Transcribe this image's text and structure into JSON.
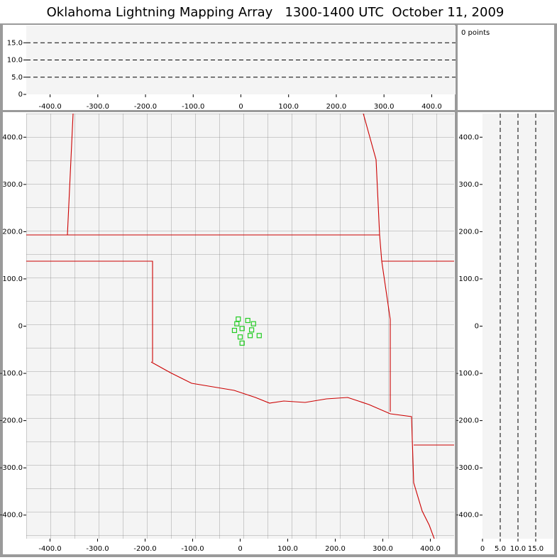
{
  "title": "Oklahoma Lightning Mapping Array   1300-1400 UTC  October 11, 2009",
  "point_count": "0 points",
  "chart_data": [
    {
      "type": "scatter",
      "xlim": [
        -450,
        450
      ],
      "xticks": [
        {
          "value": -400,
          "label": "-400.0"
        },
        {
          "value": -300,
          "label": "-300.0"
        },
        {
          "value": -200,
          "label": "-200.0"
        },
        {
          "value": -100,
          "label": "-100.0"
        },
        0,
        {
          "value": 100,
          "label": "100.0"
        },
        {
          "value": 200,
          "label": "200.0"
        },
        {
          "value": 300,
          "label": "300.0"
        },
        {
          "value": 400,
          "label": "400.0"
        }
      ],
      "ylim": [
        0,
        20
      ],
      "yticks": [
        0,
        {
          "value": 5,
          "label": "5.0"
        },
        {
          "value": 10,
          "label": "10.0"
        },
        {
          "value": 15,
          "label": "15.0"
        }
      ],
      "grid": "dashed"
    },
    {
      "type": "map",
      "xlim": [
        -450,
        450
      ],
      "xticks": [
        {
          "value": -400,
          "label": "-400.0"
        },
        {
          "value": -300,
          "label": "-300.0"
        },
        {
          "value": -200,
          "label": "-200.0"
        },
        {
          "value": -100,
          "label": "-100.0"
        },
        0,
        {
          "value": 100,
          "label": "100.0"
        },
        {
          "value": 200,
          "label": "200.0"
        },
        {
          "value": 300,
          "label": "300.0"
        },
        {
          "value": 400,
          "label": "400.0"
        }
      ],
      "ylim": [
        -450,
        450
      ],
      "yticks": [
        {
          "value": -400,
          "label": "-400.0"
        },
        {
          "value": -300,
          "label": "-300.0"
        },
        {
          "value": -200,
          "label": "-200.0"
        },
        {
          "value": -100,
          "label": "-100.0"
        },
        0,
        {
          "value": 100,
          "label": "100.0"
        },
        {
          "value": 200,
          "label": "200.0"
        },
        {
          "value": 300,
          "label": "300.0"
        },
        {
          "value": 400,
          "label": "400.0"
        }
      ],
      "series": [
        {
          "color": "#22cc22",
          "x": [
            -4,
            -7,
            16,
            28,
            4,
            -12,
            24,
            21,
            0,
            40,
            4
          ],
          "y": [
            15,
            5,
            12,
            5,
            -5,
            -9,
            -8,
            -20,
            -23,
            -20,
            -36
          ]
        }
      ]
    },
    {
      "type": "scatter",
      "xlim": [
        0,
        20
      ],
      "xticks": [
        0,
        {
          "value": 5,
          "label": "5.0"
        },
        {
          "value": 10,
          "label": "10.0"
        },
        {
          "value": 15,
          "label": "15.0"
        }
      ],
      "ylim": [
        -450,
        450
      ],
      "yticks": [
        {
          "value": -400,
          "label": "-400.0"
        },
        {
          "value": -300,
          "label": "-300.0"
        },
        {
          "value": -200,
          "label": "-200.0"
        },
        {
          "value": -100,
          "label": "-100.0"
        },
        0,
        {
          "value": 100,
          "label": "100.0"
        },
        {
          "value": 200,
          "label": "200.0"
        },
        {
          "value": 300,
          "label": "300.0"
        },
        {
          "value": 400,
          "label": "400.0"
        }
      ],
      "grid": "dashed"
    }
  ]
}
